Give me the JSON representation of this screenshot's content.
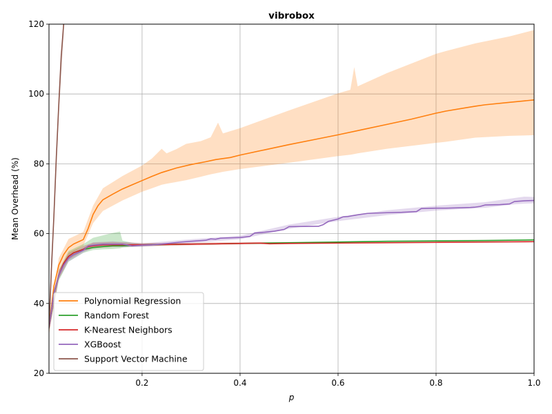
{
  "chart_data": {
    "type": "line",
    "title": "vibrobox",
    "xlabel": "p",
    "ylabel": "Mean Overhead (%)",
    "xlim": [
      0.01,
      1.0
    ],
    "ylim": [
      20,
      120
    ],
    "xticks": [
      0.2,
      0.4,
      0.6,
      0.8,
      1.0
    ],
    "xtick_labels": [
      "0.2",
      "0.4",
      "0.6",
      "0.8",
      "1.0"
    ],
    "yticks": [
      20,
      40,
      60,
      80,
      100,
      120
    ],
    "ytick_labels": [
      "20",
      "40",
      "60",
      "80",
      "100",
      "120"
    ],
    "grid": true,
    "legend_position": "lower-left",
    "series": [
      {
        "name": "Polynomial Regression",
        "color": "#ff7f0e",
        "points": [
          [
            0.01,
            33
          ],
          [
            0.02,
            45
          ],
          [
            0.03,
            51
          ],
          [
            0.04,
            54
          ],
          [
            0.05,
            56
          ],
          [
            0.06,
            57
          ],
          [
            0.08,
            58.3
          ],
          [
            0.09,
            61.5
          ],
          [
            0.1,
            65.5
          ],
          [
            0.11,
            68
          ],
          [
            0.12,
            69.7
          ],
          [
            0.14,
            71.3
          ],
          [
            0.16,
            72.8
          ],
          [
            0.18,
            74
          ],
          [
            0.2,
            75.2
          ],
          [
            0.22,
            76.4
          ],
          [
            0.24,
            77.5
          ],
          [
            0.27,
            78.8
          ],
          [
            0.3,
            79.8
          ],
          [
            0.33,
            80.6
          ],
          [
            0.35,
            81.2
          ],
          [
            0.38,
            81.8
          ],
          [
            0.4,
            82.5
          ],
          [
            0.45,
            84
          ],
          [
            0.5,
            85.5
          ],
          [
            0.55,
            86.9
          ],
          [
            0.6,
            88.3
          ],
          [
            0.65,
            89.8
          ],
          [
            0.7,
            91.3
          ],
          [
            0.75,
            92.8
          ],
          [
            0.8,
            94.5
          ],
          [
            0.82,
            95.1
          ],
          [
            0.85,
            95.8
          ],
          [
            0.88,
            96.5
          ],
          [
            0.9,
            96.9
          ],
          [
            0.95,
            97.6
          ],
          [
            1.0,
            98.3
          ]
        ],
        "band": [
          [
            0.01,
            31,
            35
          ],
          [
            0.03,
            49,
            53
          ],
          [
            0.05,
            54,
            58.5
          ],
          [
            0.08,
            56.5,
            60.5
          ],
          [
            0.1,
            63,
            68
          ],
          [
            0.12,
            66.5,
            73
          ],
          [
            0.16,
            69.5,
            76.5
          ],
          [
            0.2,
            72,
            79.5
          ],
          [
            0.22,
            73,
            81.5
          ],
          [
            0.24,
            74,
            84.3
          ],
          [
            0.25,
            74.3,
            83
          ],
          [
            0.27,
            74.8,
            84.2
          ],
          [
            0.29,
            75.3,
            85.7
          ],
          [
            0.32,
            76.3,
            86.5
          ],
          [
            0.34,
            77,
            87.6
          ],
          [
            0.355,
            77.4,
            91.8
          ],
          [
            0.365,
            77.7,
            88.7
          ],
          [
            0.4,
            78.5,
            90.2
          ],
          [
            0.5,
            80.3,
            95.3
          ],
          [
            0.6,
            82.2,
            100.2
          ],
          [
            0.625,
            82.6,
            101.2
          ],
          [
            0.633,
            82.8,
            107.7
          ],
          [
            0.64,
            83,
            102.2
          ],
          [
            0.7,
            84.3,
            106
          ],
          [
            0.8,
            86,
            111.5
          ],
          [
            0.82,
            86.3,
            112.3
          ],
          [
            0.88,
            87.5,
            114.5
          ],
          [
            0.95,
            88,
            116.5
          ],
          [
            1.0,
            88.2,
            118.3
          ]
        ]
      },
      {
        "name": "Random Forest",
        "color": "#2ca02c",
        "points": [
          [
            0.01,
            33
          ],
          [
            0.02,
            43
          ],
          [
            0.03,
            48
          ],
          [
            0.04,
            51.5
          ],
          [
            0.05,
            53.5
          ],
          [
            0.06,
            54.5
          ],
          [
            0.08,
            55.5
          ],
          [
            0.1,
            56
          ],
          [
            0.12,
            56.3
          ],
          [
            0.14,
            56.5
          ],
          [
            0.16,
            56.5
          ],
          [
            0.2,
            56.8
          ],
          [
            0.3,
            57
          ],
          [
            0.4,
            57.2
          ],
          [
            0.5,
            57.4
          ],
          [
            0.6,
            57.6
          ],
          [
            0.7,
            57.8
          ],
          [
            0.8,
            57.9
          ],
          [
            0.9,
            58
          ],
          [
            1.0,
            58.2
          ]
        ],
        "band": [
          [
            0.01,
            32,
            34
          ],
          [
            0.03,
            46.5,
            49.5
          ],
          [
            0.05,
            52,
            55
          ],
          [
            0.08,
            54.5,
            57
          ],
          [
            0.1,
            55.3,
            58.8
          ],
          [
            0.12,
            55.5,
            59.5
          ],
          [
            0.14,
            55.6,
            60.2
          ],
          [
            0.155,
            55.8,
            60.6
          ],
          [
            0.16,
            56,
            58
          ],
          [
            0.18,
            56.2,
            57.4
          ],
          [
            0.2,
            56.4,
            57.2
          ],
          [
            0.3,
            56.8,
            57.2
          ],
          [
            0.5,
            57.2,
            57.6
          ],
          [
            0.7,
            57.6,
            58
          ],
          [
            1.0,
            58,
            58.4
          ]
        ]
      },
      {
        "name": "K-Nearest Neighbors",
        "color": "#d62728",
        "points": [
          [
            0.01,
            33
          ],
          [
            0.02,
            43
          ],
          [
            0.03,
            48
          ],
          [
            0.04,
            51.5
          ],
          [
            0.05,
            53.5
          ],
          [
            0.06,
            54.5
          ],
          [
            0.08,
            55.5
          ],
          [
            0.09,
            56.3
          ],
          [
            0.1,
            56.5
          ],
          [
            0.12,
            56.8
          ],
          [
            0.14,
            56.8
          ],
          [
            0.16,
            56.8
          ],
          [
            0.2,
            56.8
          ],
          [
            0.3,
            57
          ],
          [
            0.4,
            57.2
          ],
          [
            0.44,
            57.3
          ],
          [
            0.46,
            57.1
          ],
          [
            0.5,
            57.2
          ],
          [
            0.6,
            57.3
          ],
          [
            0.7,
            57.4
          ],
          [
            0.8,
            57.5
          ],
          [
            0.9,
            57.6
          ],
          [
            1.0,
            57.7
          ]
        ],
        "band": [
          [
            0.01,
            32,
            34
          ],
          [
            0.03,
            47,
            49.5
          ],
          [
            0.05,
            52.5,
            54.5
          ],
          [
            0.08,
            55,
            56.5
          ],
          [
            0.1,
            55.8,
            57.4
          ],
          [
            0.14,
            56.2,
            57.6
          ],
          [
            0.2,
            56.4,
            57.3
          ],
          [
            0.4,
            56.9,
            57.5
          ],
          [
            0.6,
            57.1,
            57.5
          ],
          [
            1.0,
            57.5,
            57.9
          ]
        ]
      },
      {
        "name": "XGBoost",
        "color": "#9467bd",
        "points": [
          [
            0.01,
            33
          ],
          [
            0.02,
            43
          ],
          [
            0.03,
            48
          ],
          [
            0.04,
            51
          ],
          [
            0.05,
            53
          ],
          [
            0.06,
            54
          ],
          [
            0.08,
            55.2
          ],
          [
            0.09,
            56.5
          ],
          [
            0.1,
            56.7
          ],
          [
            0.12,
            57
          ],
          [
            0.14,
            57
          ],
          [
            0.16,
            57
          ],
          [
            0.18,
            56.5
          ],
          [
            0.2,
            56.7
          ],
          [
            0.22,
            56.8
          ],
          [
            0.24,
            57
          ],
          [
            0.26,
            57.3
          ],
          [
            0.28,
            57.6
          ],
          [
            0.3,
            57.8
          ],
          [
            0.33,
            58.1
          ],
          [
            0.34,
            58.5
          ],
          [
            0.35,
            58.4
          ],
          [
            0.36,
            58.7
          ],
          [
            0.4,
            58.9
          ],
          [
            0.42,
            59.2
          ],
          [
            0.43,
            60.2
          ],
          [
            0.45,
            60.4
          ],
          [
            0.47,
            60.7
          ],
          [
            0.49,
            61.2
          ],
          [
            0.5,
            62
          ],
          [
            0.56,
            62.1
          ],
          [
            0.57,
            62.6
          ],
          [
            0.58,
            63.5
          ],
          [
            0.6,
            64.2
          ],
          [
            0.61,
            64.8
          ],
          [
            0.62,
            64.9
          ],
          [
            0.64,
            65.4
          ],
          [
            0.66,
            65.8
          ],
          [
            0.7,
            66
          ],
          [
            0.73,
            66.1
          ],
          [
            0.76,
            66.3
          ],
          [
            0.77,
            67.2
          ],
          [
            0.8,
            67.3
          ],
          [
            0.82,
            67.3
          ],
          [
            0.87,
            67.5
          ],
          [
            0.88,
            67.6
          ],
          [
            0.89,
            67.8
          ],
          [
            0.9,
            68.2
          ],
          [
            0.93,
            68.3
          ],
          [
            0.95,
            68.5
          ],
          [
            0.96,
            69.2
          ],
          [
            0.98,
            69.4
          ],
          [
            1.0,
            69.5
          ]
        ],
        "band": [
          [
            0.01,
            32,
            34
          ],
          [
            0.03,
            47,
            49.5
          ],
          [
            0.05,
            52,
            54
          ],
          [
            0.08,
            54.5,
            56
          ],
          [
            0.1,
            56,
            57.5
          ],
          [
            0.14,
            56.3,
            57.8
          ],
          [
            0.16,
            56.2,
            57.6
          ],
          [
            0.2,
            56.2,
            57.2
          ],
          [
            0.3,
            57.3,
            58.4
          ],
          [
            0.4,
            58.4,
            59.4
          ],
          [
            0.5,
            61.4,
            62.6
          ],
          [
            0.6,
            63.6,
            64.8
          ],
          [
            0.7,
            65.3,
            66.7
          ],
          [
            0.8,
            66.6,
            68
          ],
          [
            0.9,
            67.4,
            69
          ],
          [
            0.96,
            68.4,
            70.2
          ],
          [
            0.98,
            68.6,
            70.6
          ],
          [
            1.0,
            68.7,
            70.5
          ]
        ]
      },
      {
        "name": "Support Vector Machine",
        "color": "#8c564b",
        "points": [
          [
            0.01,
            33
          ],
          [
            0.015,
            50
          ],
          [
            0.02,
            65
          ],
          [
            0.025,
            82
          ],
          [
            0.03,
            97
          ],
          [
            0.035,
            111
          ],
          [
            0.04,
            120
          ]
        ],
        "band": [
          [
            0.01,
            31,
            34
          ],
          [
            0.02,
            63,
            67
          ],
          [
            0.03,
            94,
            100
          ],
          [
            0.04,
            117,
            123
          ]
        ]
      }
    ]
  }
}
